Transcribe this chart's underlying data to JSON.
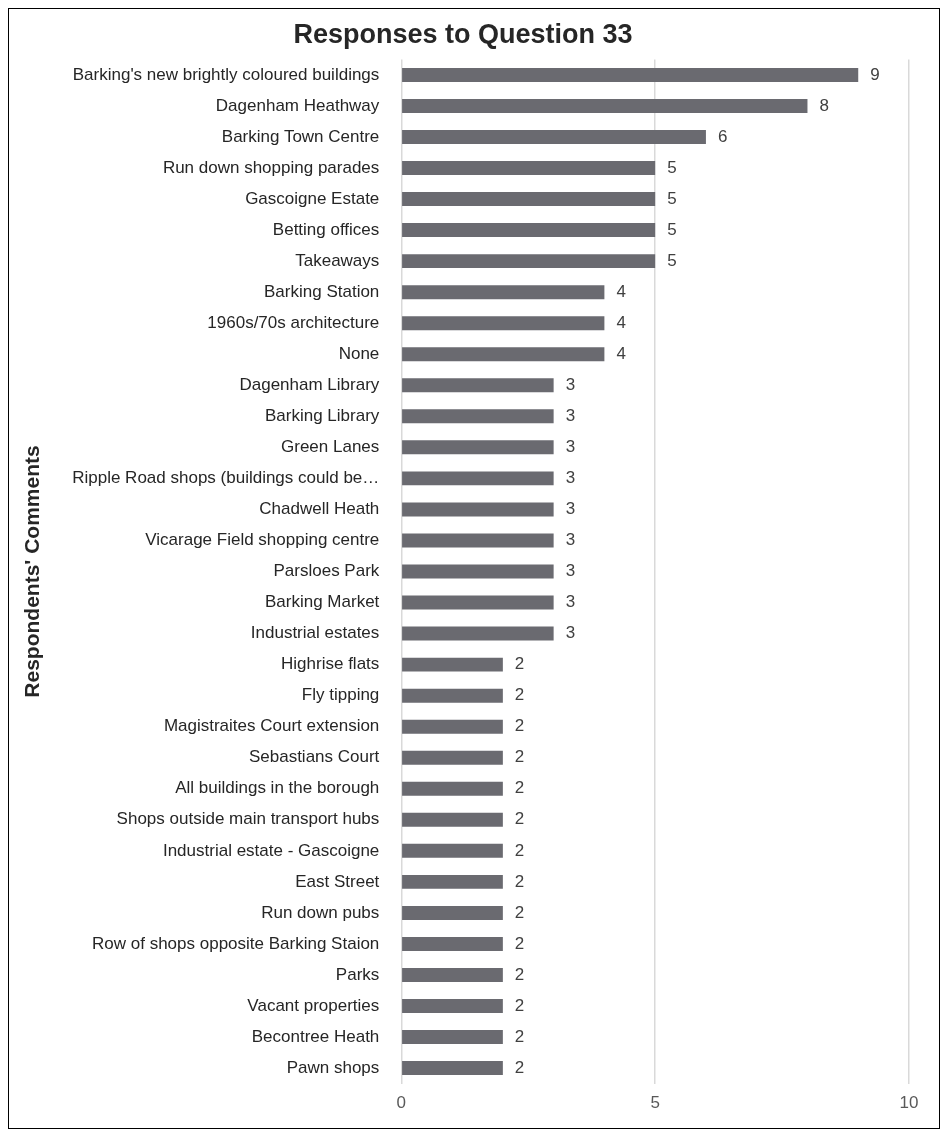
{
  "chart_data": {
    "type": "bar",
    "orientation": "horizontal",
    "title": "Responses to Question 33",
    "ylabel": "Respondents' Comments",
    "categories": [
      "Barking's new brightly coloured buildings",
      "Dagenham Heathway",
      "Barking Town Centre",
      "Run down shopping parades",
      "Gascoigne Estate",
      "Betting offices",
      "Takeaways",
      "Barking Station",
      "1960s/70s architecture",
      "None",
      "Dagenham Library",
      "Barking Library",
      "Green Lanes",
      "Ripple Road shops (buildings could be…",
      "Chadwell Heath",
      "Vicarage Field shopping centre",
      "Parsloes Park",
      "Barking Market",
      "Industrial estates",
      "Highrise flats",
      "Fly tipping",
      "Magistraites Court extension",
      "Sebastians Court",
      "All buildings in the borough",
      "Shops outside main transport hubs",
      "Industrial estate - Gascoigne",
      "East Street",
      "Run down pubs",
      "Row of shops opposite Barking Staion",
      "Parks",
      "Vacant properties",
      "Becontree Heath",
      "Pawn shops"
    ],
    "values": [
      9,
      8,
      6,
      5,
      5,
      5,
      5,
      4,
      4,
      4,
      3,
      3,
      3,
      3,
      3,
      3,
      3,
      3,
      3,
      2,
      2,
      2,
      2,
      2,
      2,
      2,
      2,
      2,
      2,
      2,
      2,
      2,
      2
    ],
    "color": "#6a6a70",
    "xlim": [
      0,
      10
    ],
    "xticks": [
      0,
      5,
      10
    ],
    "grid": "x",
    "data_labels": true,
    "legend": false
  }
}
